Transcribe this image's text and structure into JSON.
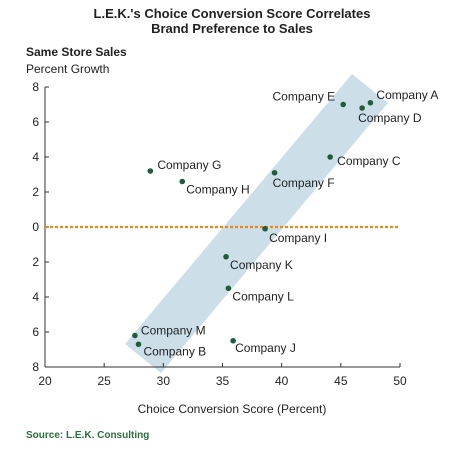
{
  "chart_data": {
    "type": "scatter",
    "title": "L.E.K.'s Choice Conversion Score Correlates Brand Preference to Sales",
    "title_lines": [
      "L.E.K.'s Choice Conversion Score Correlates",
      "Brand Preference to Sales"
    ],
    "ylabel": "Same Store Sales",
    "ylabel_sub": "Percent Growth",
    "xlabel": "Choice Conversion Score (Percent)",
    "source": "Source: L.E.K. Consulting",
    "xlim": [
      20,
      50
    ],
    "ylim": [
      -8,
      8
    ],
    "x_ticks": [
      20,
      25,
      30,
      35,
      40,
      45,
      50
    ],
    "y_ticks": [
      8,
      6,
      4,
      2,
      0,
      -2,
      -4,
      -6,
      -8
    ],
    "y_tick_labels": [
      "8",
      "6",
      "4",
      "2",
      "0",
      "2",
      "4",
      "6",
      "8"
    ],
    "reference_line_y": 0,
    "colors": {
      "point": "#1f5c3a",
      "band": "#c9dde8",
      "reference": "#e8891a"
    },
    "points": [
      {
        "label": "Company A",
        "x": 47.5,
        "y": 7.1
      },
      {
        "label": "Company E",
        "x": 45.2,
        "y": 7.0
      },
      {
        "label": "Company D",
        "x": 46.8,
        "y": 6.8
      },
      {
        "label": "Company C",
        "x": 44.1,
        "y": 4.0
      },
      {
        "label": "Company F",
        "x": 39.4,
        "y": 3.1
      },
      {
        "label": "Company G",
        "x": 28.9,
        "y": 3.2
      },
      {
        "label": "Company H",
        "x": 31.6,
        "y": 2.6
      },
      {
        "label": "Company I",
        "x": 38.6,
        "y": -0.1
      },
      {
        "label": "Company K",
        "x": 35.3,
        "y": -1.7
      },
      {
        "label": "Company L",
        "x": 35.5,
        "y": -3.5
      },
      {
        "label": "Company M",
        "x": 27.6,
        "y": -6.2
      },
      {
        "label": "Company B",
        "x": 27.9,
        "y": -6.7
      },
      {
        "label": "Company J",
        "x": 35.9,
        "y": -6.5
      }
    ]
  }
}
